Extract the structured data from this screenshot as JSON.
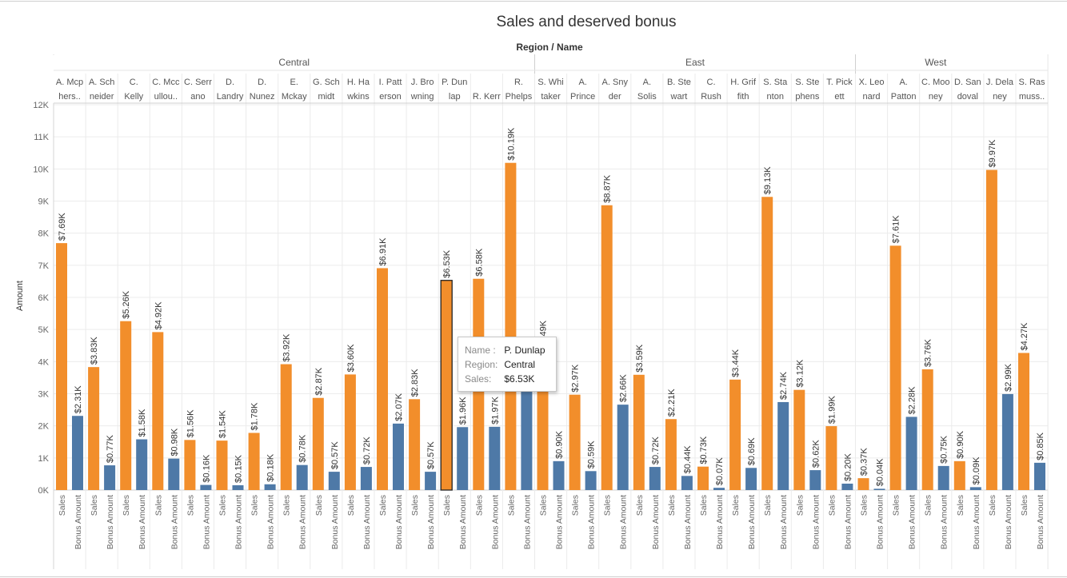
{
  "chart_data": {
    "type": "bar",
    "title": "Sales and deserved bonus",
    "column_header": "Region / Name",
    "ylabel": "Amount",
    "ylim": [
      0,
      12000
    ],
    "y_ticks": [
      "0K",
      "1K",
      "2K",
      "3K",
      "4K",
      "5K",
      "6K",
      "7K",
      "8K",
      "9K",
      "10K",
      "11K",
      "12K"
    ],
    "measures": [
      "Sales",
      "Bonus Amount"
    ],
    "colors": {
      "Sales": "#f28e2b",
      "Bonus Amount": "#4e79a7"
    },
    "grid": true,
    "regions": [
      {
        "name": "Central",
        "count": 15
      },
      {
        "name": "East",
        "count": 10
      },
      {
        "name": "West",
        "count": 5
      }
    ],
    "people": [
      {
        "region": "Central",
        "name": [
          "A. Mcp",
          "hers.."
        ],
        "sales": 7690,
        "sales_label": "$7.69K",
        "bonus": 2310,
        "bonus_label": "$2.31K"
      },
      {
        "region": "Central",
        "name": [
          "A. Sch",
          "neider"
        ],
        "sales": 3830,
        "sales_label": "$3.83K",
        "bonus": 770,
        "bonus_label": "$0.77K"
      },
      {
        "region": "Central",
        "name": [
          "C.",
          "Kelly"
        ],
        "sales": 5260,
        "sales_label": "$5.26K",
        "bonus": 1580,
        "bonus_label": "$1.58K"
      },
      {
        "region": "Central",
        "name": [
          "C. Mcc",
          "ullou.."
        ],
        "sales": 4920,
        "sales_label": "$4.92K",
        "bonus": 980,
        "bonus_label": "$0.98K"
      },
      {
        "region": "Central",
        "name": [
          "C. Serr",
          "ano"
        ],
        "sales": 1560,
        "sales_label": "$1.56K",
        "bonus": 160,
        "bonus_label": "$0.16K"
      },
      {
        "region": "Central",
        "name": [
          "D.",
          "Landry"
        ],
        "sales": 1540,
        "sales_label": "$1.54K",
        "bonus": 150,
        "bonus_label": "$0.15K"
      },
      {
        "region": "Central",
        "name": [
          "D.",
          "Nunez"
        ],
        "sales": 1780,
        "sales_label": "$1.78K",
        "bonus": 180,
        "bonus_label": "$0.18K"
      },
      {
        "region": "Central",
        "name": [
          "E.",
          "Mckay"
        ],
        "sales": 3920,
        "sales_label": "$3.92K",
        "bonus": 780,
        "bonus_label": "$0.78K"
      },
      {
        "region": "Central",
        "name": [
          "G. Sch",
          "midt"
        ],
        "sales": 2870,
        "sales_label": "$2.87K",
        "bonus": 570,
        "bonus_label": "$0.57K"
      },
      {
        "region": "Central",
        "name": [
          "H. Ha",
          "wkins"
        ],
        "sales": 3600,
        "sales_label": "$3.60K",
        "bonus": 720,
        "bonus_label": "$0.72K"
      },
      {
        "region": "Central",
        "name": [
          "I. Patt",
          "erson"
        ],
        "sales": 6910,
        "sales_label": "$6.91K",
        "bonus": 2070,
        "bonus_label": "$2.07K"
      },
      {
        "region": "Central",
        "name": [
          "J. Bro",
          "wning"
        ],
        "sales": 2830,
        "sales_label": "$2.83K",
        "bonus": 570,
        "bonus_label": "$0.57K"
      },
      {
        "region": "Central",
        "name": [
          "P. Dun",
          "lap"
        ],
        "sales": 6530,
        "sales_label": "$6.53K",
        "bonus": 1960,
        "bonus_label": "$1.96K",
        "highlight": true
      },
      {
        "region": "Central",
        "name": [
          "",
          "R. Kerr"
        ],
        "sales": 6580,
        "sales_label": "$6.58K",
        "bonus": 1970,
        "bonus_label": "$1.97K"
      },
      {
        "region": "Central",
        "name": [
          "R.",
          "Phelps"
        ],
        "sales": 10190,
        "sales_label": "$10.19K",
        "bonus": 3060,
        "bonus_label": ""
      },
      {
        "region": "East",
        "name": [
          "S. Whi",
          "taker"
        ],
        "sales": 4490,
        "sales_label": "4.49K",
        "bonus": 900,
        "bonus_label": "$0.90K"
      },
      {
        "region": "East",
        "name": [
          "A.",
          "Prince"
        ],
        "sales": 2970,
        "sales_label": "$2.97K",
        "bonus": 590,
        "bonus_label": "$0.59K"
      },
      {
        "region": "East",
        "name": [
          "A. Sny",
          "der"
        ],
        "sales": 8870,
        "sales_label": "$8.87K",
        "bonus": 2660,
        "bonus_label": "$2.66K"
      },
      {
        "region": "East",
        "name": [
          "A.",
          "Solis"
        ],
        "sales": 3590,
        "sales_label": "$3.59K",
        "bonus": 720,
        "bonus_label": "$0.72K"
      },
      {
        "region": "East",
        "name": [
          "B. Ste",
          "wart"
        ],
        "sales": 2210,
        "sales_label": "$2.21K",
        "bonus": 440,
        "bonus_label": "$0.44K"
      },
      {
        "region": "East",
        "name": [
          "C.",
          "Rush"
        ],
        "sales": 730,
        "sales_label": "$0.73K",
        "bonus": 70,
        "bonus_label": "$0.07K"
      },
      {
        "region": "East",
        "name": [
          "H. Grif",
          "fith"
        ],
        "sales": 3440,
        "sales_label": "$3.44K",
        "bonus": 690,
        "bonus_label": "$0.69K"
      },
      {
        "region": "East",
        "name": [
          "S. Sta",
          "nton"
        ],
        "sales": 9130,
        "sales_label": "$9.13K",
        "bonus": 2740,
        "bonus_label": "$2.74K"
      },
      {
        "region": "East",
        "name": [
          "S. Ste",
          "phens"
        ],
        "sales": 3120,
        "sales_label": "$3.12K",
        "bonus": 620,
        "bonus_label": "$0.62K"
      },
      {
        "region": "East",
        "name": [
          "T. Pick",
          "ett"
        ],
        "sales": 1990,
        "sales_label": "$1.99K",
        "bonus": 200,
        "bonus_label": "$0.20K"
      },
      {
        "region": "East",
        "name": [
          "X. Leo",
          "nard"
        ],
        "sales": 370,
        "sales_label": "$0.37K",
        "bonus": 40,
        "bonus_label": "$0.04K"
      },
      {
        "region": "West",
        "name": [
          "A.",
          "Patton"
        ],
        "sales": 7610,
        "sales_label": "$7.61K",
        "bonus": 2280,
        "bonus_label": "$2.28K"
      },
      {
        "region": "West",
        "name": [
          "C. Moo",
          "ney"
        ],
        "sales": 3760,
        "sales_label": "$3.76K",
        "bonus": 750,
        "bonus_label": "$0.75K"
      },
      {
        "region": "West",
        "name": [
          "D. San",
          "doval"
        ],
        "sales": 900,
        "sales_label": "$0.90K",
        "bonus": 90,
        "bonus_label": "$0.09K"
      },
      {
        "region": "West",
        "name": [
          "J. Dela",
          "ney"
        ],
        "sales": 9970,
        "sales_label": "$9.97K",
        "bonus": 2990,
        "bonus_label": "$2.99K"
      },
      {
        "region": "West",
        "name": [
          "S. Ras",
          "muss.."
        ],
        "sales": 4270,
        "sales_label": "$4.27K",
        "bonus": 850,
        "bonus_label": "$0.85K"
      }
    ]
  },
  "tooltip": {
    "name_key": "Name :",
    "name_val": "P. Dunlap",
    "region_key": "Region:",
    "region_val": "Central",
    "sales_key": "Sales:",
    "sales_val": "$6.53K"
  }
}
